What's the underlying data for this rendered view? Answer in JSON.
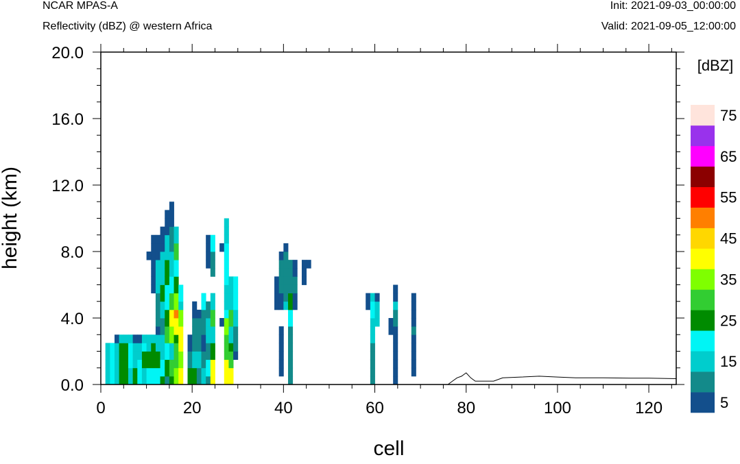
{
  "header": {
    "model": "NCAR MPAS-A",
    "field": "Reflectivity (dBZ) @ western Africa",
    "init": "Init: 2021-09-03_00:00:00",
    "valid": "Valid: 2021-09-05_12:00:00"
  },
  "chart_data": {
    "type": "heatmap",
    "xlabel": "cell",
    "ylabel": "height (km)",
    "xlim": [
      0,
      126
    ],
    "ylim": [
      0,
      20
    ],
    "x_ticks": [
      "0",
      "20",
      "40",
      "60",
      "80",
      "100",
      "120"
    ],
    "y_ticks": [
      "0.0",
      "4.0",
      "8.0",
      "12.0",
      "16.0",
      "20.0"
    ],
    "colorbar": {
      "title": "[dBZ]",
      "levels": [
        5,
        10,
        15,
        20,
        25,
        30,
        35,
        40,
        45,
        50,
        55,
        60,
        65,
        70,
        75
      ],
      "labels": [
        "5",
        "15",
        "25",
        "35",
        "45",
        "55",
        "65",
        "75"
      ],
      "colors": [
        "#134f8c",
        "#138a8a",
        "#00cdcd",
        "#00f5f5",
        "#008b00",
        "#32cd32",
        "#7fff00",
        "#ffff00",
        "#ffd700",
        "#ff7f00",
        "#ff0000",
        "#8b0000",
        "#ff00ff",
        "#9932ec",
        "#ffe4dc"
      ]
    },
    "cell_height_km": 0.5,
    "columns": [
      {
        "x": 1,
        "segs": [
          [
            0.0,
            2.5,
            15
          ]
        ]
      },
      {
        "x": 2,
        "segs": [
          [
            0.0,
            2.5,
            20
          ]
        ]
      },
      {
        "x": 3,
        "segs": [
          [
            0.0,
            2.5,
            15
          ],
          [
            2.5,
            3.0,
            5
          ]
        ]
      },
      {
        "x": 4,
        "segs": [
          [
            0.0,
            2.5,
            25
          ],
          [
            2.5,
            3.0,
            15
          ]
        ]
      },
      {
        "x": 5,
        "segs": [
          [
            0.0,
            2.5,
            25
          ],
          [
            2.5,
            3.0,
            15
          ]
        ]
      },
      {
        "x": 6,
        "segs": [
          [
            0.0,
            1.0,
            15
          ],
          [
            1.0,
            2.5,
            20
          ],
          [
            2.5,
            3.0,
            15
          ]
        ]
      },
      {
        "x": 7,
        "segs": [
          [
            0.0,
            1.0,
            25
          ],
          [
            1.0,
            2.5,
            15
          ],
          [
            2.5,
            3.0,
            5
          ]
        ]
      },
      {
        "x": 8,
        "segs": [
          [
            0.0,
            1.5,
            20
          ],
          [
            1.5,
            2.5,
            15
          ],
          [
            2.5,
            3.0,
            5
          ]
        ]
      },
      {
        "x": 9,
        "segs": [
          [
            0.0,
            1.0,
            15
          ],
          [
            1.0,
            2.0,
            25
          ],
          [
            2.0,
            2.5,
            20
          ],
          [
            2.5,
            3.0,
            15
          ]
        ]
      },
      {
        "x": 10,
        "segs": [
          [
            0.0,
            1.0,
            20
          ],
          [
            1.0,
            2.0,
            25
          ],
          [
            2.0,
            3.0,
            15
          ],
          [
            7.5,
            8.0,
            5
          ]
        ]
      },
      {
        "x": 11,
        "segs": [
          [
            0.0,
            1.0,
            20
          ],
          [
            1.0,
            2.5,
            25
          ],
          [
            2.5,
            3.0,
            15
          ],
          [
            5.5,
            9.0,
            5
          ]
        ]
      },
      {
        "x": 12,
        "segs": [
          [
            0.0,
            1.0,
            20
          ],
          [
            1.0,
            2.0,
            25
          ],
          [
            2.0,
            3.0,
            15
          ],
          [
            3.0,
            3.5,
            5
          ],
          [
            3.5,
            5.5,
            10
          ],
          [
            5.5,
            7.5,
            15
          ],
          [
            7.5,
            9.0,
            5
          ]
        ]
      },
      {
        "x": 13,
        "segs": [
          [
            0.0,
            0.5,
            25
          ],
          [
            0.5,
            1.5,
            20
          ],
          [
            1.5,
            3.0,
            15
          ],
          [
            3.0,
            4.0,
            10
          ],
          [
            4.0,
            5.0,
            15
          ],
          [
            5.0,
            6.0,
            25
          ],
          [
            6.0,
            8.0,
            15
          ],
          [
            8.0,
            9.5,
            5
          ]
        ]
      },
      {
        "x": 14,
        "segs": [
          [
            0.0,
            0.5,
            10
          ],
          [
            0.5,
            1.5,
            25
          ],
          [
            1.5,
            2.5,
            20
          ],
          [
            2.5,
            3.5,
            30
          ],
          [
            3.5,
            4.5,
            25
          ],
          [
            4.5,
            6.0,
            20
          ],
          [
            6.0,
            7.5,
            25
          ],
          [
            7.5,
            9.0,
            15
          ],
          [
            9.0,
            10.5,
            5
          ]
        ]
      },
      {
        "x": 15,
        "segs": [
          [
            0.0,
            0.5,
            25
          ],
          [
            0.5,
            1.5,
            30
          ],
          [
            1.5,
            2.5,
            15
          ],
          [
            2.5,
            3.5,
            35
          ],
          [
            3.5,
            4.5,
            40
          ],
          [
            4.5,
            5.5,
            30
          ],
          [
            5.5,
            6.5,
            20
          ],
          [
            6.5,
            8.0,
            15
          ],
          [
            8.0,
            9.5,
            10
          ],
          [
            9.5,
            10.5,
            5
          ],
          [
            10.5,
            11.0,
            5
          ]
        ]
      },
      {
        "x": 16,
        "segs": [
          [
            0.0,
            1.0,
            35
          ],
          [
            1.0,
            2.5,
            30
          ],
          [
            2.5,
            3.0,
            25
          ],
          [
            3.0,
            4.0,
            40
          ],
          [
            4.0,
            4.5,
            50
          ],
          [
            4.5,
            5.5,
            35
          ],
          [
            5.5,
            6.5,
            25
          ],
          [
            6.5,
            7.5,
            20
          ],
          [
            7.5,
            8.5,
            30
          ],
          [
            8.5,
            9.5,
            15
          ]
        ]
      },
      {
        "x": 17,
        "segs": [
          [
            0.0,
            1.0,
            40
          ],
          [
            1.0,
            2.0,
            35
          ],
          [
            2.0,
            3.5,
            40
          ],
          [
            3.5,
            4.5,
            35
          ],
          [
            4.5,
            5.0,
            15
          ],
          [
            5.0,
            6.0,
            20
          ]
        ]
      },
      {
        "x": 19,
        "segs": [
          [
            0.0,
            1.0,
            25
          ],
          [
            1.0,
            2.0,
            10
          ],
          [
            2.0,
            3.0,
            5
          ]
        ]
      },
      {
        "x": 20,
        "segs": [
          [
            0.0,
            1.0,
            25
          ],
          [
            1.0,
            2.0,
            15
          ],
          [
            2.0,
            4.0,
            10
          ],
          [
            4.0,
            5.0,
            5
          ]
        ]
      },
      {
        "x": 21,
        "segs": [
          [
            0.0,
            1.0,
            10
          ],
          [
            1.0,
            2.0,
            15
          ],
          [
            2.0,
            4.0,
            10
          ],
          [
            4.0,
            4.5,
            5
          ]
        ]
      },
      {
        "x": 22,
        "segs": [
          [
            0.0,
            1.0,
            15
          ],
          [
            1.0,
            2.0,
            10
          ],
          [
            2.0,
            3.0,
            5
          ],
          [
            3.0,
            4.5,
            10
          ],
          [
            4.5,
            5.5,
            20
          ]
        ]
      },
      {
        "x": 23,
        "segs": [
          [
            0.0,
            0.5,
            10
          ],
          [
            0.5,
            1.5,
            20
          ],
          [
            1.5,
            2.5,
            10
          ],
          [
            2.5,
            4.0,
            15
          ],
          [
            4.0,
            5.0,
            10
          ],
          [
            7.0,
            9.0,
            5
          ]
        ]
      },
      {
        "x": 24,
        "segs": [
          [
            0.0,
            1.5,
            40
          ],
          [
            1.5,
            2.5,
            25
          ],
          [
            2.5,
            3.5,
            15
          ],
          [
            3.5,
            4.5,
            30
          ],
          [
            4.5,
            5.5,
            15
          ],
          [
            6.5,
            8.0,
            10
          ],
          [
            8.0,
            9.0,
            20
          ]
        ]
      },
      {
        "x": 26,
        "segs": [
          [
            3.5,
            4.0,
            5
          ],
          [
            8.0,
            8.5,
            5
          ]
        ]
      },
      {
        "x": 27,
        "segs": [
          [
            0.0,
            1.5,
            40
          ],
          [
            1.5,
            3.0,
            30
          ],
          [
            3.0,
            4.0,
            35
          ],
          [
            4.0,
            4.5,
            20
          ],
          [
            4.5,
            6.0,
            15
          ],
          [
            6.0,
            8.5,
            20
          ],
          [
            8.5,
            10.0,
            15
          ]
        ]
      },
      {
        "x": 28,
        "segs": [
          [
            0.0,
            1.0,
            40
          ],
          [
            1.0,
            2.0,
            30
          ],
          [
            2.0,
            2.5,
            25
          ],
          [
            2.5,
            3.5,
            15
          ],
          [
            3.5,
            4.5,
            30
          ],
          [
            4.5,
            6.5,
            15
          ]
        ]
      },
      {
        "x": 29,
        "segs": [
          [
            1.5,
            2.0,
            5
          ],
          [
            2.0,
            3.5,
            10
          ],
          [
            3.5,
            4.5,
            15
          ],
          [
            4.5,
            6.5,
            20
          ]
        ]
      },
      {
        "x": 38,
        "segs": [
          [
            4.5,
            6.5,
            5
          ]
        ]
      },
      {
        "x": 39,
        "segs": [
          [
            0.5,
            3.5,
            5
          ],
          [
            4.5,
            5.5,
            5
          ],
          [
            5.5,
            7.5,
            10
          ],
          [
            7.5,
            8.0,
            5
          ]
        ]
      },
      {
        "x": 40,
        "segs": [
          [
            4.5,
            5.0,
            15
          ],
          [
            5.0,
            8.0,
            10
          ],
          [
            8.0,
            8.5,
            5
          ]
        ]
      },
      {
        "x": 41,
        "segs": [
          [
            0.0,
            3.5,
            10
          ],
          [
            3.5,
            4.5,
            20
          ],
          [
            4.5,
            5.5,
            25
          ],
          [
            5.5,
            7.5,
            10
          ]
        ]
      },
      {
        "x": 42,
        "segs": [
          [
            4.5,
            5.5,
            5
          ],
          [
            5.5,
            6.5,
            10
          ],
          [
            6.5,
            7.5,
            5
          ]
        ]
      },
      {
        "x": 44,
        "segs": [
          [
            6.0,
            7.5,
            5
          ]
        ]
      },
      {
        "x": 45,
        "segs": [
          [
            7.0,
            7.5,
            5
          ]
        ]
      },
      {
        "x": 58,
        "segs": [
          [
            4.5,
            5.5,
            5
          ]
        ]
      },
      {
        "x": 59,
        "segs": [
          [
            0.0,
            2.5,
            10
          ],
          [
            2.5,
            4.0,
            15
          ],
          [
            4.0,
            5.0,
            20
          ],
          [
            5.0,
            5.5,
            15
          ]
        ]
      },
      {
        "x": 60,
        "segs": [
          [
            3.5,
            5.0,
            15
          ],
          [
            5.0,
            5.5,
            5
          ]
        ]
      },
      {
        "x": 63,
        "segs": [
          [
            3.0,
            4.0,
            5
          ]
        ]
      },
      {
        "x": 64,
        "segs": [
          [
            0.0,
            3.5,
            5
          ],
          [
            3.5,
            4.5,
            10
          ],
          [
            4.5,
            5.0,
            15
          ],
          [
            5.0,
            6.0,
            5
          ]
        ]
      },
      {
        "x": 68,
        "segs": [
          [
            0.5,
            3.0,
            5
          ],
          [
            3.0,
            3.5,
            10
          ],
          [
            3.5,
            5.5,
            5
          ]
        ]
      }
    ],
    "terrain": [
      [
        0,
        0.0
      ],
      [
        76,
        0.0
      ],
      [
        77,
        0.2
      ],
      [
        78,
        0.4
      ],
      [
        79,
        0.5
      ],
      [
        80,
        0.7
      ],
      [
        81,
        0.4
      ],
      [
        82,
        0.2
      ],
      [
        84,
        0.2
      ],
      [
        86,
        0.2
      ],
      [
        88,
        0.4
      ],
      [
        92,
        0.45
      ],
      [
        96,
        0.5
      ],
      [
        100,
        0.45
      ],
      [
        104,
        0.4
      ],
      [
        110,
        0.4
      ],
      [
        116,
        0.38
      ],
      [
        120,
        0.38
      ],
      [
        126,
        0.35
      ]
    ]
  }
}
